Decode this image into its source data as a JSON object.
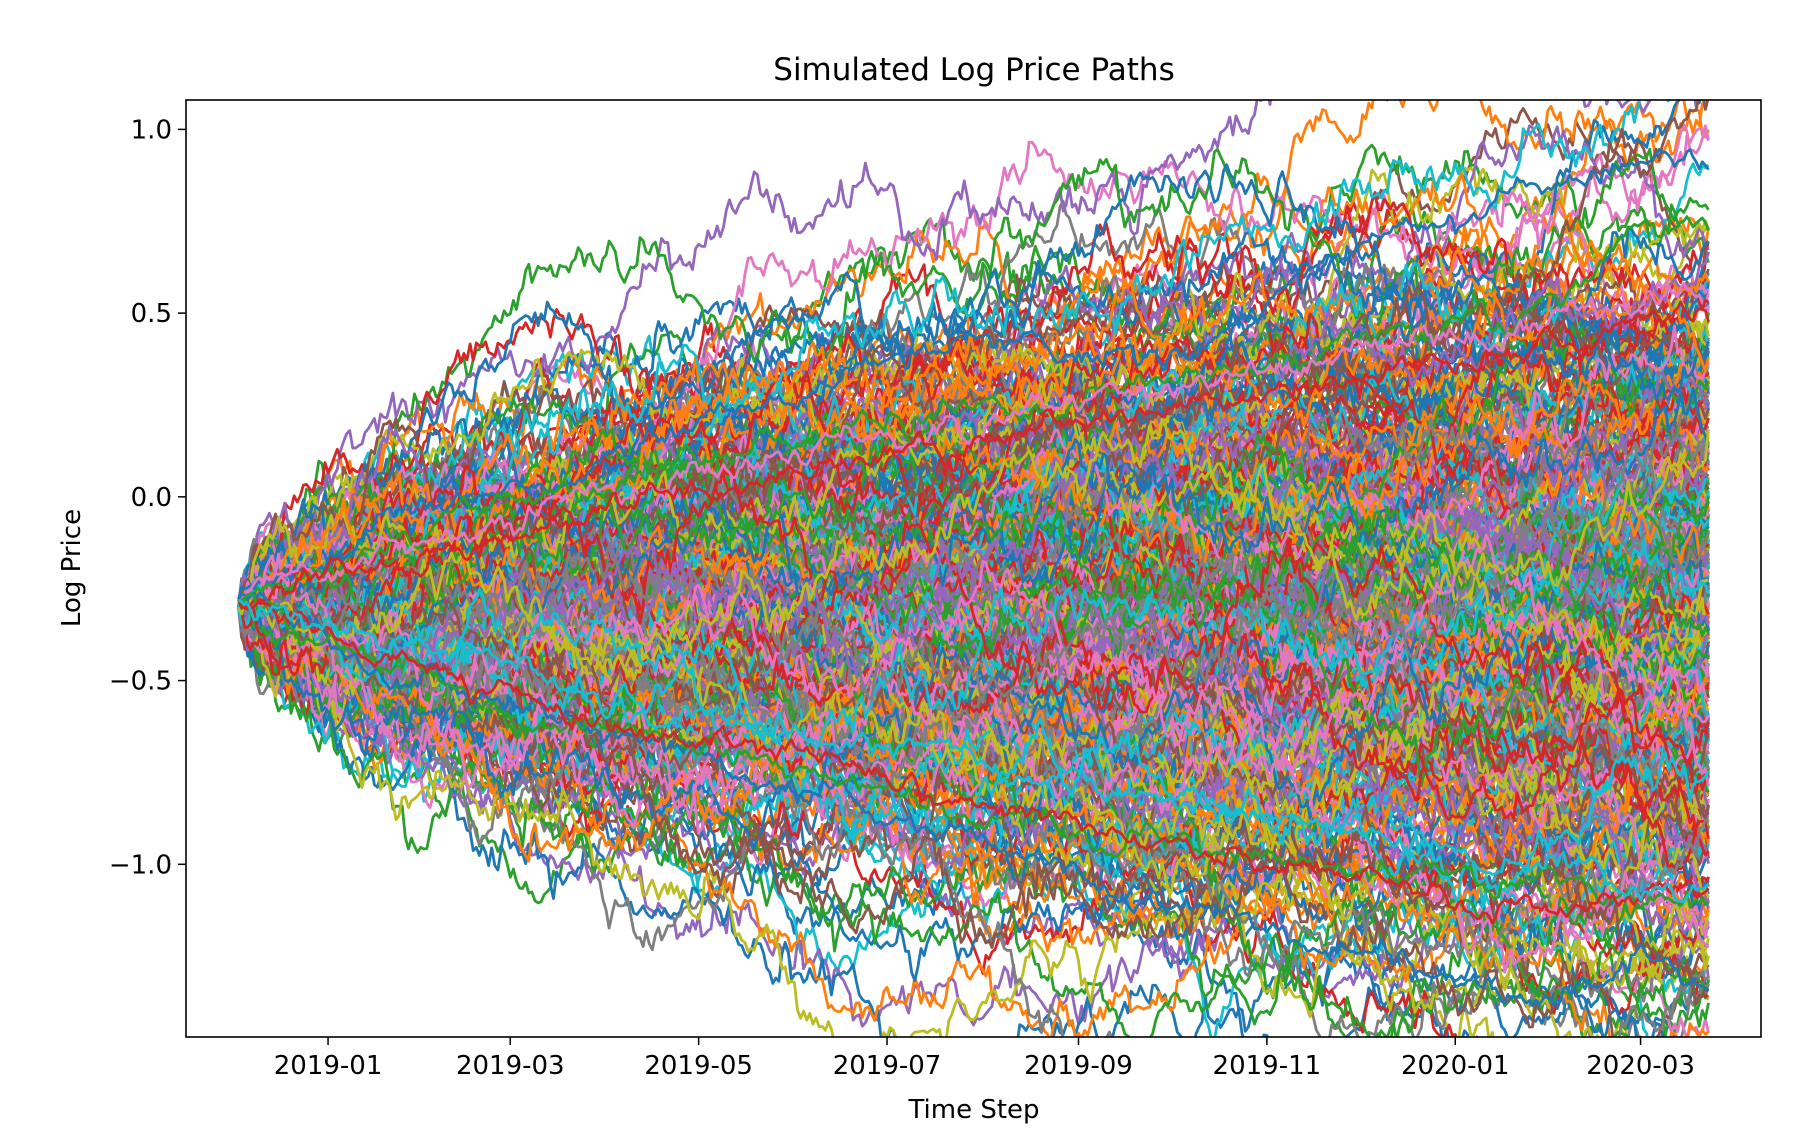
{
  "chart_data": {
    "type": "line",
    "title": "Simulated Log Price Paths",
    "xlabel": "Time Step",
    "ylabel": "Log Price",
    "x_start": "2018-12-03",
    "x_end": "2020-03-23",
    "xlim": [
      "2018-11-16",
      "2020-04-09"
    ],
    "ylim": [
      -1.47,
      1.08
    ],
    "x_ticks": [
      {
        "date": "2019-01-01",
        "label": "2019-01"
      },
      {
        "date": "2019-03-01",
        "label": "2019-03"
      },
      {
        "date": "2019-05-01",
        "label": "2019-05"
      },
      {
        "date": "2019-07-01",
        "label": "2019-07"
      },
      {
        "date": "2019-09-01",
        "label": "2019-09"
      },
      {
        "date": "2019-11-01",
        "label": "2019-11"
      },
      {
        "date": "2020-01-01",
        "label": "2020-01"
      },
      {
        "date": "2020-03-01",
        "label": "2020-03"
      }
    ],
    "y_ticks": [
      {
        "value": 1.0,
        "label": "1.0"
      },
      {
        "value": 0.5,
        "label": "0.5"
      },
      {
        "value": 0.0,
        "label": "0.0"
      },
      {
        "value": -0.5,
        "label": "−0.5"
      },
      {
        "value": -1.0,
        "label": "−1.0"
      }
    ],
    "start_value": -0.28,
    "colors": [
      "#1f77b4",
      "#ff7f0e",
      "#2ca02c",
      "#d62728",
      "#9467bd",
      "#8c564b",
      "#e377c2",
      "#7f7f7f",
      "#bcbd22",
      "#17becf"
    ],
    "path_count": 500,
    "highlighted_paths": [
      {
        "color": "#1f77b4",
        "anchors": [
          [
            "2018-12-03",
            -0.28
          ],
          [
            "2019-02-01",
            -0.05
          ],
          [
            "2019-04-01",
            0.08
          ],
          [
            "2019-05-15",
            0.25
          ],
          [
            "2019-07-01",
            0.35
          ],
          [
            "2019-08-01",
            0.45
          ],
          [
            "2019-09-15",
            0.38
          ],
          [
            "2019-10-15",
            0.42
          ],
          [
            "2019-12-01",
            0.7
          ],
          [
            "2020-01-01",
            0.75
          ],
          [
            "2020-02-01",
            0.85
          ],
          [
            "2020-03-01",
            0.96
          ],
          [
            "2020-03-23",
            0.89
          ]
        ]
      },
      {
        "color": "#2ca02c",
        "anchors": [
          [
            "2018-12-03",
            -0.28
          ],
          [
            "2019-03-01",
            -0.02
          ],
          [
            "2019-06-01",
            0.16
          ],
          [
            "2019-09-01",
            0.26
          ],
          [
            "2019-11-01",
            0.36
          ],
          [
            "2019-12-15",
            0.48
          ],
          [
            "2020-02-01",
            0.52
          ],
          [
            "2020-03-01",
            0.75
          ],
          [
            "2020-03-23",
            0.71
          ]
        ]
      },
      {
        "color": "#e377c2",
        "anchors": [
          [
            "2018-12-03",
            -0.28
          ],
          [
            "2019-04-01",
            0.02
          ],
          [
            "2019-08-01",
            0.22
          ],
          [
            "2019-11-01",
            0.35
          ],
          [
            "2020-01-15",
            0.45
          ],
          [
            "2020-03-23",
            0.6
          ]
        ]
      },
      {
        "color": "#d62728",
        "anchors": [
          [
            "2018-12-03",
            -0.28
          ],
          [
            "2019-04-01",
            -0.05
          ],
          [
            "2019-08-01",
            0.15
          ],
          [
            "2019-11-01",
            0.28
          ],
          [
            "2020-02-01",
            0.4
          ],
          [
            "2020-03-23",
            0.52
          ]
        ]
      },
      {
        "color": "#1f77b4",
        "anchors": [
          [
            "2018-12-03",
            -0.28
          ],
          [
            "2019-02-01",
            -0.5
          ],
          [
            "2019-05-01",
            -0.7
          ],
          [
            "2019-07-01",
            -0.85
          ],
          [
            "2019-08-15",
            -0.97
          ],
          [
            "2019-09-15",
            -1.1
          ],
          [
            "2019-10-15",
            -1.1
          ],
          [
            "2019-11-15",
            -1.22
          ],
          [
            "2019-12-15",
            -1.25
          ],
          [
            "2020-01-15",
            -1.32
          ],
          [
            "2020-02-01",
            -1.36
          ],
          [
            "2020-02-15",
            -1.3
          ],
          [
            "2020-03-01",
            -1.25
          ],
          [
            "2020-03-23",
            -1.33
          ]
        ]
      },
      {
        "color": "#2ca02c",
        "anchors": [
          [
            "2018-12-03",
            -0.28
          ],
          [
            "2019-03-01",
            -0.6
          ],
          [
            "2019-06-01",
            -0.75
          ],
          [
            "2019-09-01",
            -0.92
          ],
          [
            "2019-11-01",
            -0.98
          ],
          [
            "2020-01-01",
            -1.02
          ],
          [
            "2020-03-01",
            -1.08
          ],
          [
            "2020-03-23",
            -1.11
          ]
        ]
      },
      {
        "color": "#d62728",
        "anchors": [
          [
            "2018-12-03",
            -0.28
          ],
          [
            "2019-03-01",
            -0.55
          ],
          [
            "2019-06-01",
            -0.7
          ],
          [
            "2019-09-01",
            -0.9
          ],
          [
            "2019-12-01",
            -1.05
          ],
          [
            "2020-01-15",
            -1.12
          ],
          [
            "2020-03-23",
            -1.06
          ]
        ]
      },
      {
        "color": "#17becf",
        "anchors": [
          [
            "2018-12-03",
            -0.28
          ],
          [
            "2019-04-01",
            -0.55
          ],
          [
            "2019-08-01",
            -0.72
          ],
          [
            "2019-11-01",
            -0.85
          ],
          [
            "2020-01-01",
            -0.98
          ],
          [
            "2020-02-15",
            -1.05
          ],
          [
            "2020-03-23",
            -1.07
          ]
        ]
      }
    ]
  }
}
